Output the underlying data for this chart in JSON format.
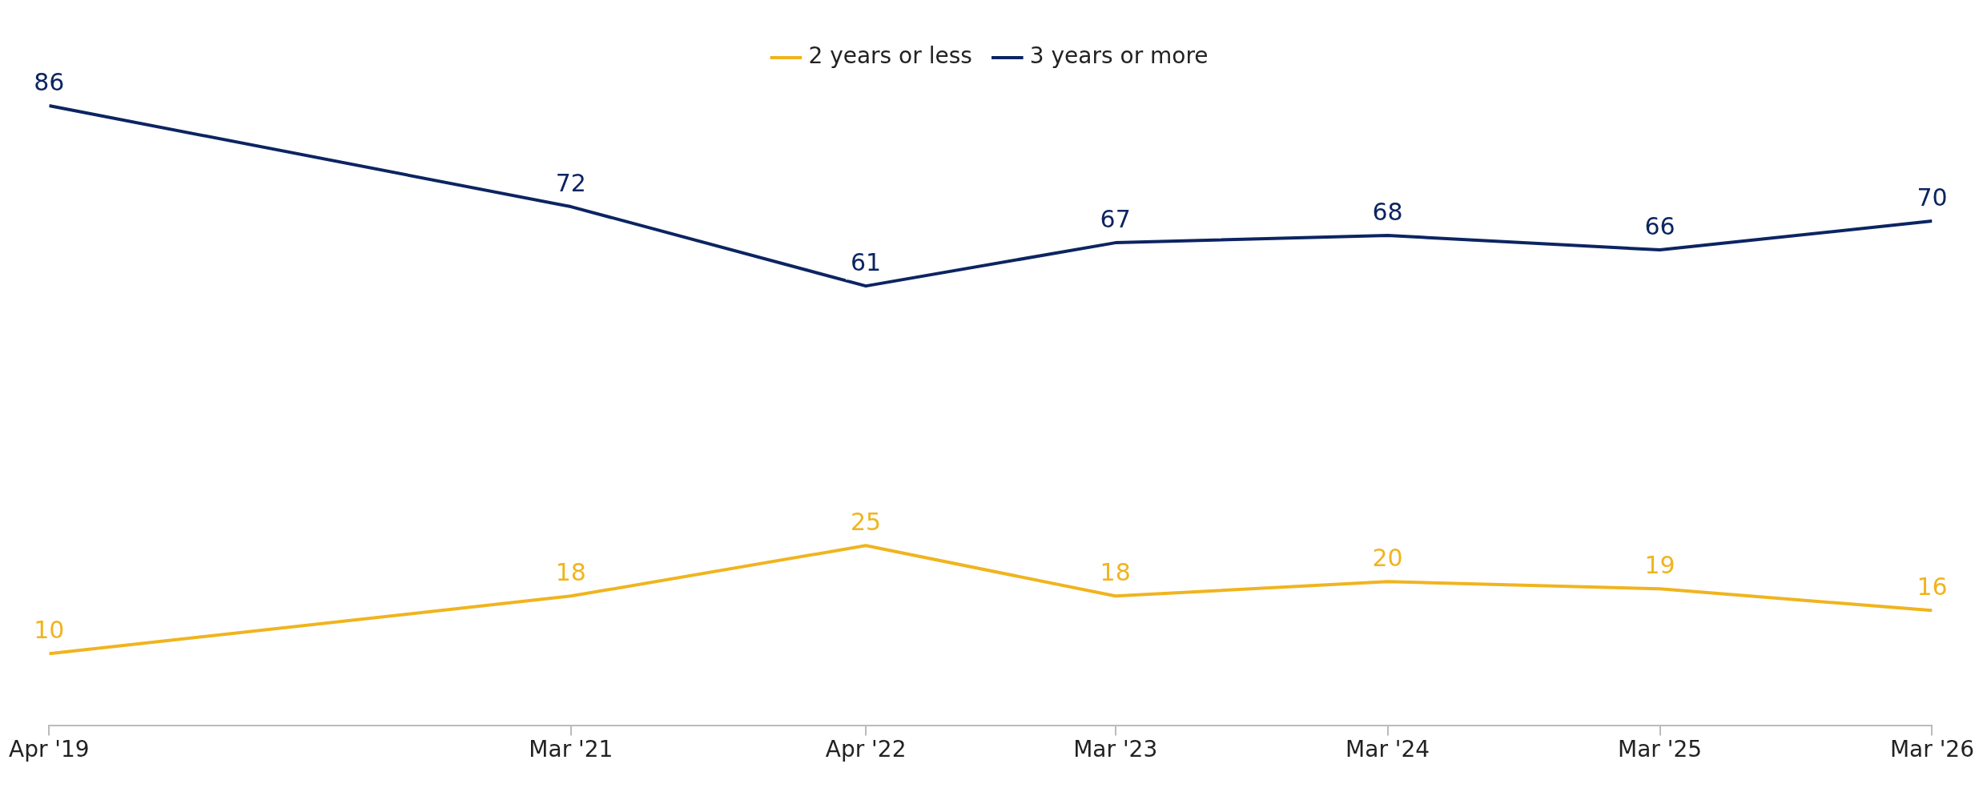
{
  "chart_data": {
    "type": "line",
    "x": [
      "2019-04",
      "2021-03",
      "2022-04",
      "2023-03",
      "2024-03",
      "2025-03",
      "2026-03"
    ],
    "xlim": [
      "2019-04",
      "2026-03"
    ],
    "xticks": [
      {
        "value": "2019-04",
        "label": "Apr '19"
      },
      {
        "value": "2021-03",
        "label": "Mar '21"
      },
      {
        "value": "2022-04",
        "label": "Apr '22"
      },
      {
        "value": "2023-03",
        "label": "Mar '23"
      },
      {
        "value": "2024-03",
        "label": "Mar '24"
      },
      {
        "value": "2025-03",
        "label": "Mar '25"
      },
      {
        "value": "2026-03",
        "label": "Mar '26"
      }
    ],
    "series": [
      {
        "name": "2 years or less",
        "color": "#f0b41e",
        "values": [
          10,
          18,
          25,
          18,
          20,
          19,
          16
        ]
      },
      {
        "name": "3 years or more",
        "color": "#0c2461",
        "values": [
          86,
          72,
          61,
          67,
          68,
          66,
          70
        ]
      }
    ],
    "data_labels": true,
    "grid": false,
    "legend": "top",
    "line_style": "solid",
    "tick_labels": "x"
  }
}
